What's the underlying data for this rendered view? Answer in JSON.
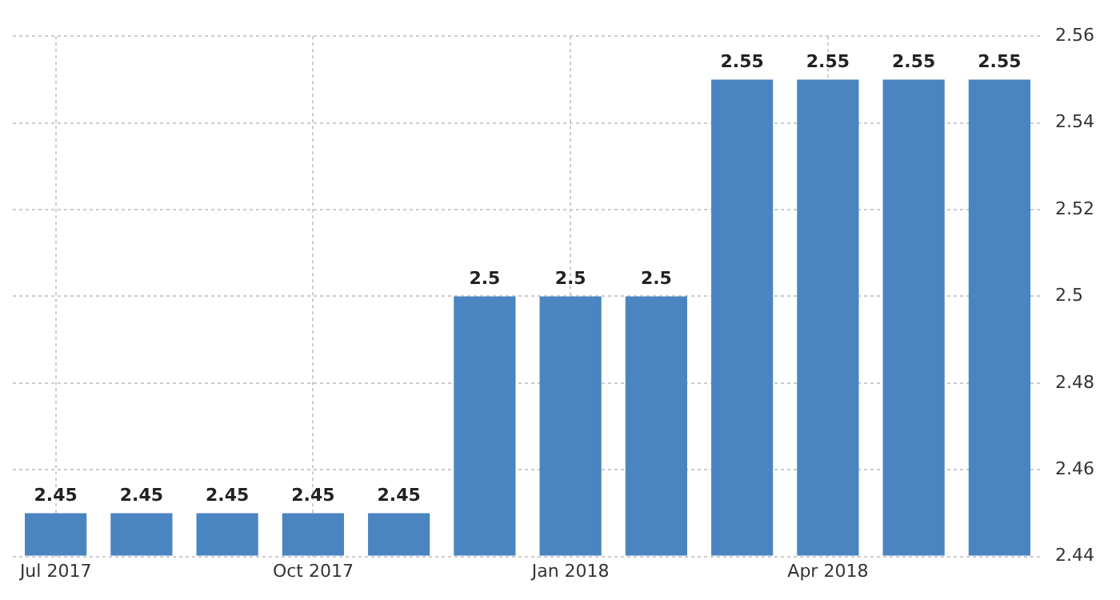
{
  "chart_data": {
    "type": "bar",
    "categories": [
      "Jul 2017",
      null,
      null,
      "Oct 2017",
      null,
      null,
      "Jan 2018",
      null,
      null,
      "Apr 2018",
      null,
      null
    ],
    "values": [
      2.45,
      2.45,
      2.45,
      2.45,
      2.45,
      2.5,
      2.5,
      2.5,
      2.55,
      2.55,
      2.55,
      2.55
    ],
    "color": "#4a85c2",
    "ylim": [
      2.44,
      2.56
    ],
    "yticks": [
      2.44,
      2.46,
      2.48,
      2.5,
      2.52,
      2.54,
      2.56
    ],
    "grid": true,
    "data_labels": true,
    "legend": false
  }
}
